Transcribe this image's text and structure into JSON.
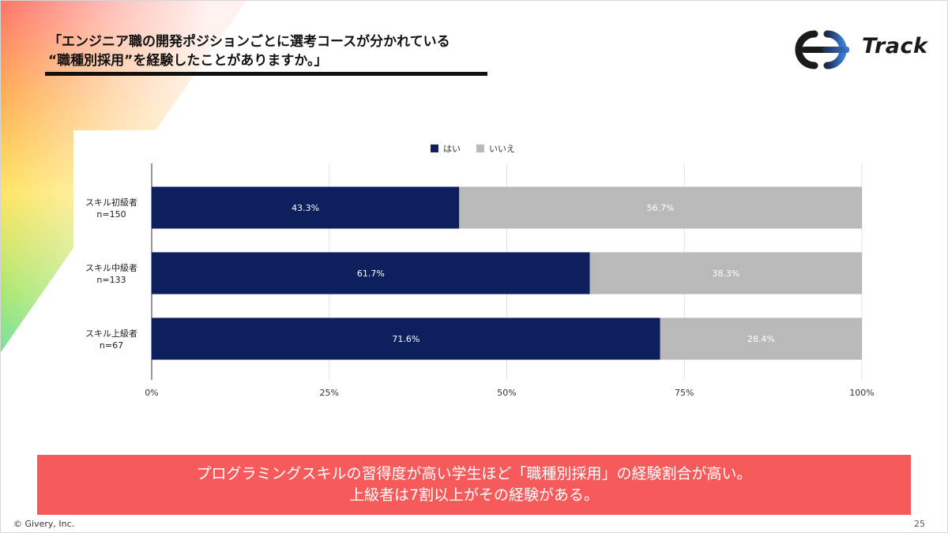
{
  "header": {
    "title_line1": "「エンジニア職の開発ポジションごとに選考コースが分かれている",
    "title_line2": "“職種別採用”を経験したことがありますか。」"
  },
  "logo": {
    "text": "Track",
    "icon": "track-logo-icon"
  },
  "colors": {
    "yes": "#0d1f5c",
    "no": "#b9b9b9",
    "banner": "#f65a5a",
    "axis": "#333333",
    "grid": "#e2e2e2"
  },
  "chart_data": {
    "type": "bar",
    "orientation": "horizontal",
    "stacked": true,
    "title": "",
    "xlabel": "",
    "ylabel": "",
    "categories": [
      {
        "name": "スキル初級者",
        "n": "n=150"
      },
      {
        "name": "スキル中級者",
        "n": "n=133"
      },
      {
        "name": "スキル上級者",
        "n": "n=67"
      }
    ],
    "series": [
      {
        "name": "はい",
        "values": [
          43.3,
          61.7,
          71.6
        ],
        "labels": [
          "43.3%",
          "61.7%",
          "71.6%"
        ]
      },
      {
        "name": "いいえ",
        "values": [
          56.7,
          38.3,
          28.4
        ],
        "labels": [
          "56.7%",
          "38.3%",
          "28.4%"
        ]
      }
    ],
    "xlim": [
      0,
      100
    ],
    "xticks": [
      0,
      25,
      50,
      75,
      100
    ],
    "xtick_labels": [
      "0%",
      "25%",
      "50%",
      "75%",
      "100%"
    ],
    "grid": true,
    "legend_position": "top-center"
  },
  "banner": {
    "line1": "プログラミングスキルの習得度が高い学生ほど「職種別採用」の経験割合が高い。",
    "line2": "上級者は7割以上がその経験がある。"
  },
  "footer": {
    "copyright": "© Givery, Inc.",
    "page_number": "25"
  }
}
